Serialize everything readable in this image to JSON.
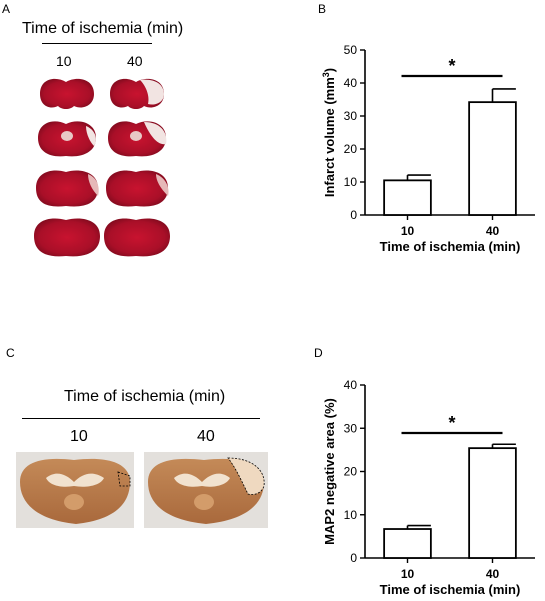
{
  "panels": {
    "a": {
      "label": "A",
      "title": "Time of ischemia (min)",
      "columns": [
        "10",
        "40"
      ],
      "image_caption": "TTC-stained coronal brain sections"
    },
    "b": {
      "label": "B"
    },
    "c": {
      "label": "C",
      "title": "Time of ischemia (min)",
      "columns": [
        "10",
        "40"
      ],
      "image_caption": "MAP2-stained coronal brain sections"
    },
    "d": {
      "label": "D"
    }
  },
  "colors": {
    "ttc_red": "#b0102a",
    "ttc_pale": "#f2e4e2",
    "map2_brown": "#b8794a",
    "map2_pale": "#f1e2cf"
  },
  "chart_data": [
    {
      "type": "bar",
      "panel": "B",
      "categories": [
        "10",
        "40"
      ],
      "values": [
        10.5,
        34.2
      ],
      "errors": [
        1.6,
        4.0
      ],
      "xlabel": "Time of ischemia (min)",
      "ylabel": "Infarct volume (mm",
      "ylabel_sup": "3",
      "ylabel_end": ")",
      "ylim": [
        0,
        50
      ],
      "yticks": [
        "0",
        "10",
        "20",
        "30",
        "40",
        "50"
      ],
      "significance": "*"
    },
    {
      "type": "bar",
      "panel": "D",
      "categories": [
        "10",
        "40"
      ],
      "values": [
        6.7,
        25.4
      ],
      "errors": [
        0.8,
        0.9
      ],
      "xlabel": "Time of ischemia (min)",
      "ylabel": "MAP2 negative area (%)",
      "ylim": [
        0,
        40
      ],
      "yticks": [
        "0",
        "10",
        "20",
        "30",
        "40"
      ],
      "significance": "*"
    }
  ]
}
